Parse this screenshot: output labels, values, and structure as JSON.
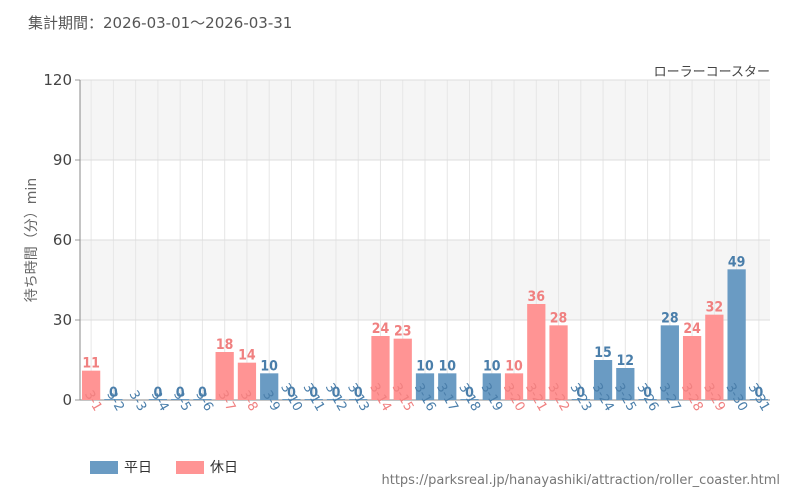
{
  "period_label": "集計期間：2026-03-01～2026-03-31",
  "chart_title": "ローラーコースター",
  "source_url": "https://parksreal.jp/hanayashiki/attraction/roller_coaster.html",
  "legend": {
    "weekday_label": "平日",
    "holiday_label": "休日",
    "weekday_color": "#6a9bc3",
    "holiday_color": "#ff9494"
  },
  "chart_data": {
    "type": "bar",
    "ylabel": "待ち時間（分）min",
    "ylim": [
      0,
      120
    ],
    "yticks": [
      0,
      30,
      60,
      90,
      120
    ],
    "grid": true,
    "legend_position": "bottom-left",
    "categories": [
      "3-1",
      "3-2",
      "3-3",
      "3-4",
      "3-5",
      "3-6",
      "3-7",
      "3-8",
      "3-9",
      "3-10",
      "3-11",
      "3-12",
      "3-13",
      "3-14",
      "3-15",
      "3-16",
      "3-17",
      "3-18",
      "3-19",
      "3-20",
      "3-21",
      "3-22",
      "3-23",
      "3-24",
      "3-25",
      "3-26",
      "3-27",
      "3-28",
      "3-29",
      "3-30",
      "3-31"
    ],
    "values": [
      11,
      0,
      null,
      0,
      0,
      0,
      18,
      14,
      10,
      0,
      0,
      0,
      0,
      24,
      23,
      10,
      10,
      0,
      10,
      10,
      36,
      28,
      0,
      15,
      12,
      0,
      28,
      24,
      32,
      49,
      0
    ],
    "day_type": [
      "休日",
      "平日",
      "平日",
      "平日",
      "平日",
      "平日",
      "休日",
      "休日",
      "平日",
      "平日",
      "平日",
      "平日",
      "平日",
      "休日",
      "休日",
      "平日",
      "平日",
      "平日",
      "平日",
      "休日",
      "休日",
      "休日",
      "平日",
      "平日",
      "平日",
      "平日",
      "平日",
      "休日",
      "休日",
      "平日",
      "平日"
    ]
  }
}
